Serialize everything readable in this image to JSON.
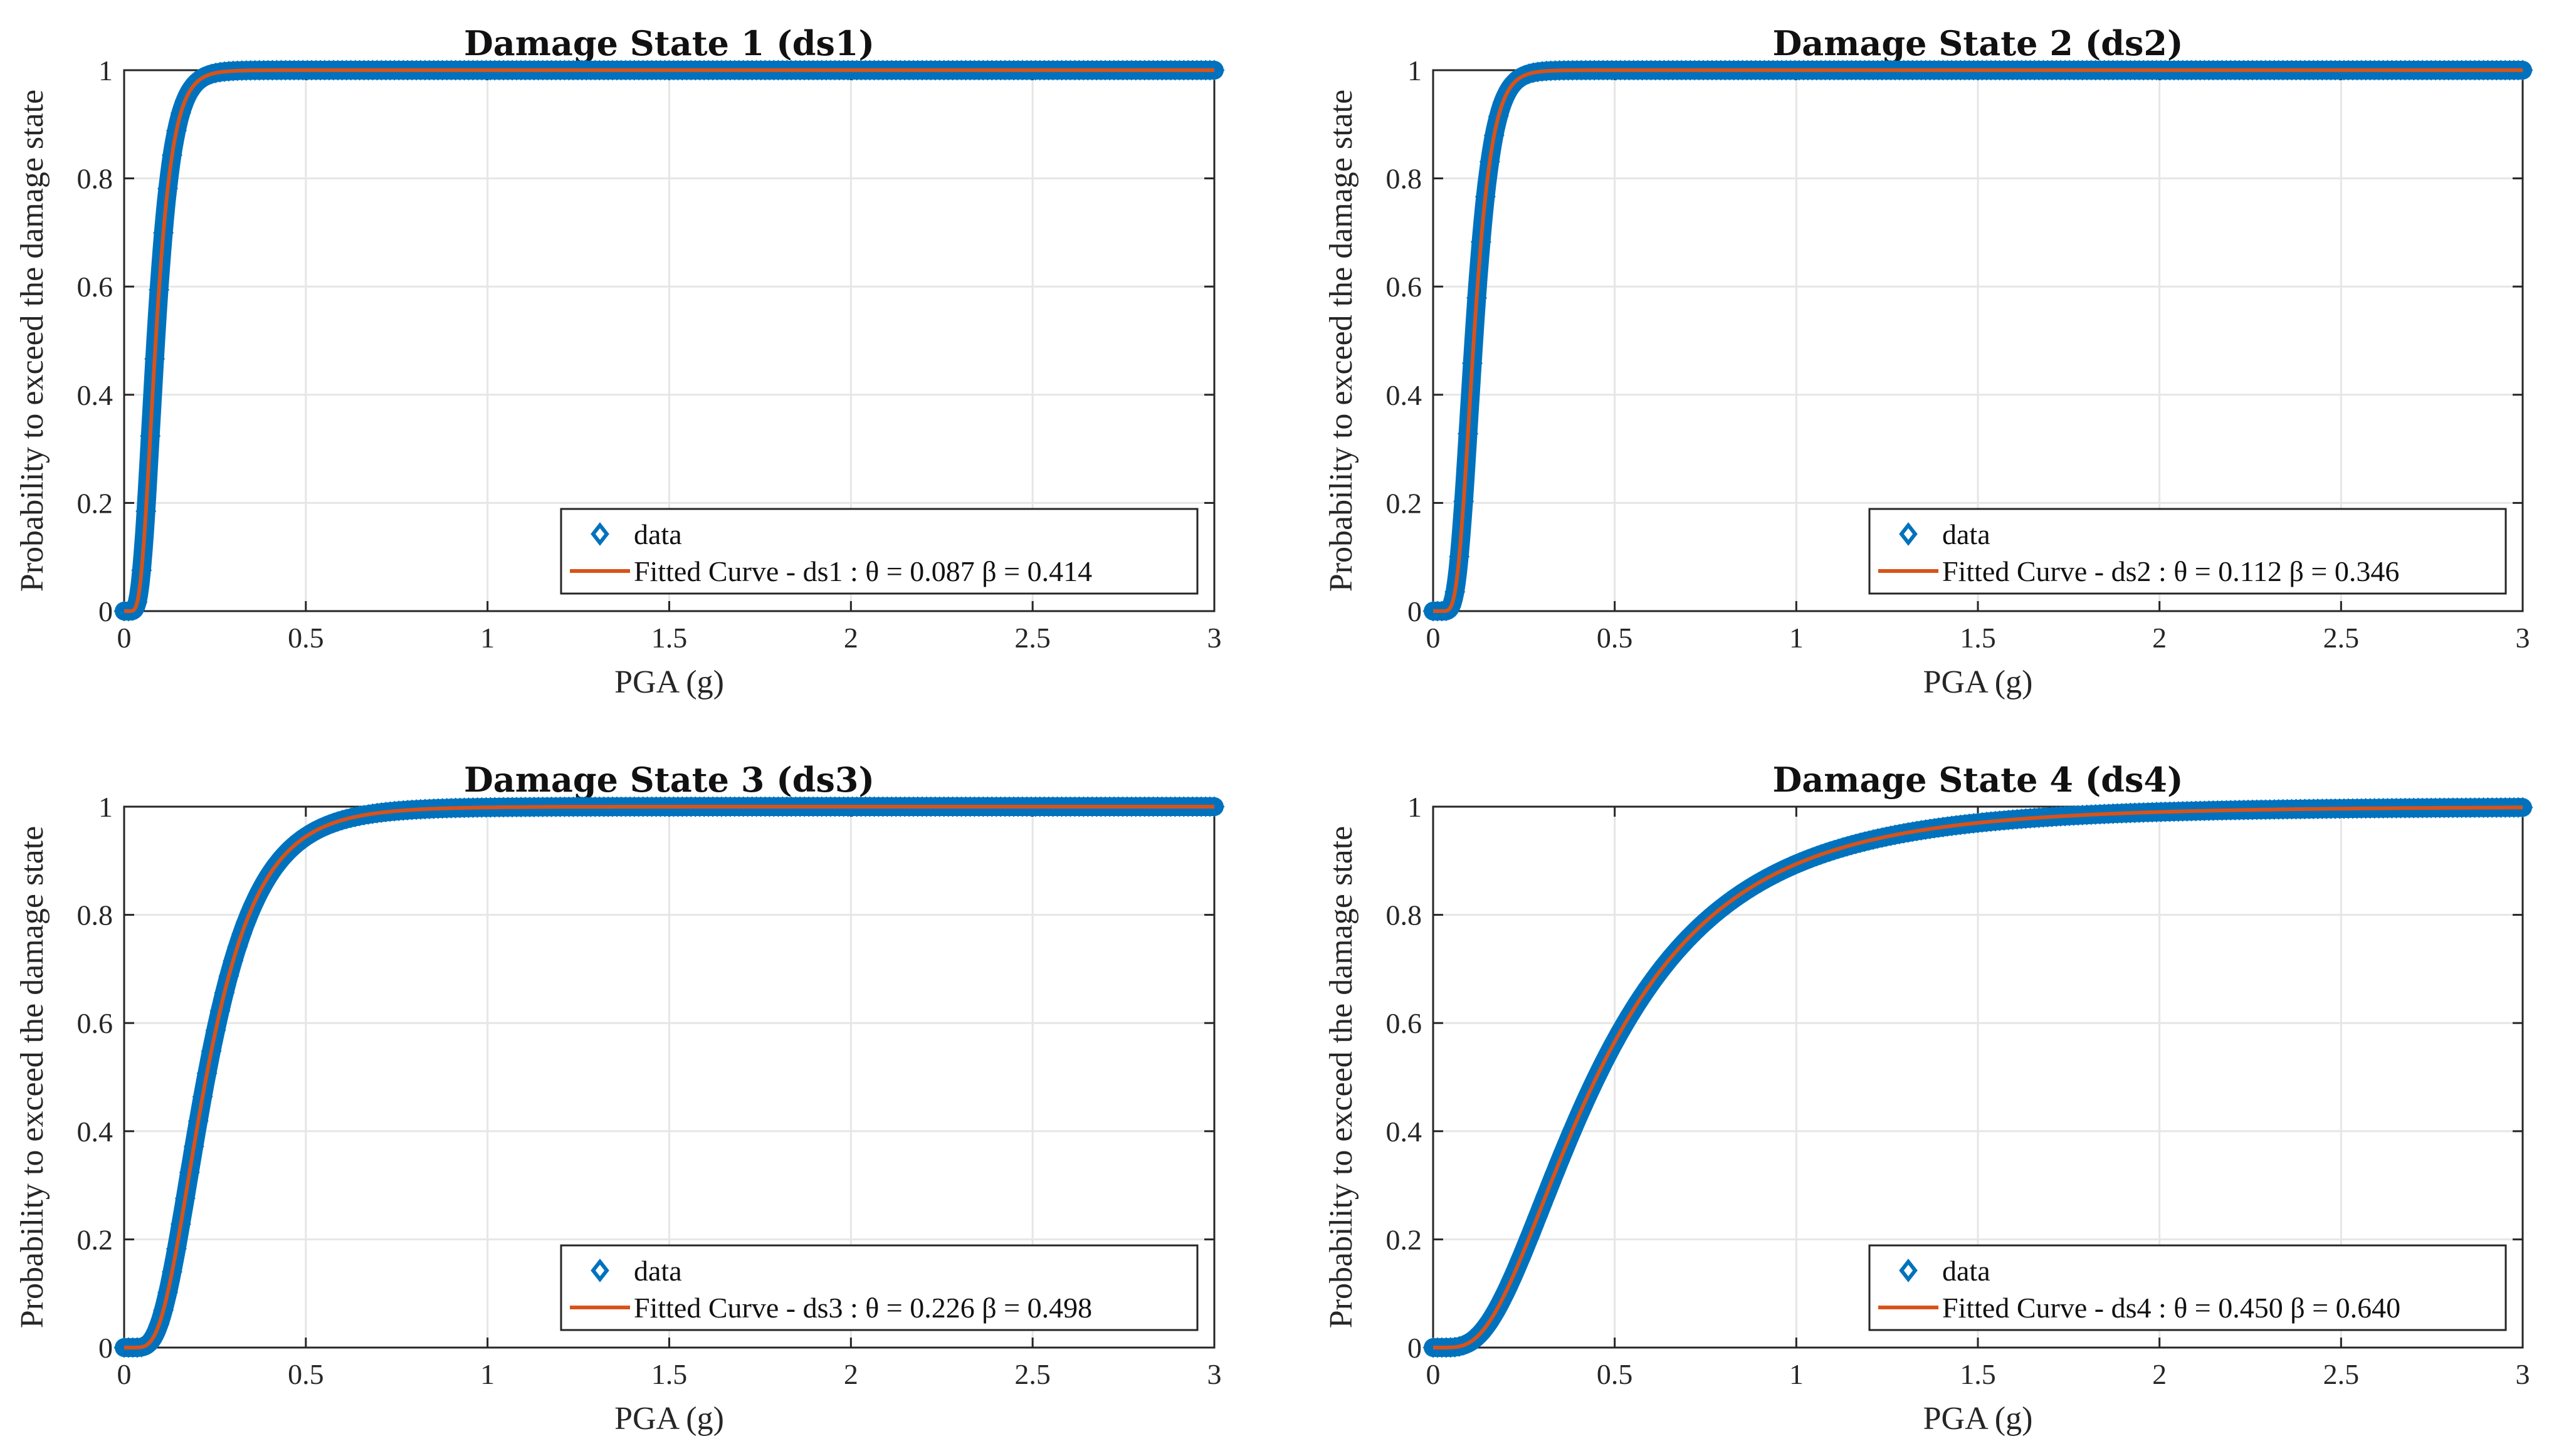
{
  "colors": {
    "data": "#0072BD",
    "fit": "#D95319",
    "grid": "#e6e6e6",
    "axis": "#262626"
  },
  "chart_data": [
    {
      "type": "line",
      "title": "Damage State 1  (ds1)",
      "xlabel": "PGA (g)",
      "ylabel": "Probability to exceed the damage state",
      "xlim": [
        0,
        3
      ],
      "ylim": [
        0,
        1
      ],
      "xticks": [
        0,
        0.5,
        1,
        1.5,
        2,
        2.5,
        3
      ],
      "xtick_labels": [
        "0",
        "0.5",
        "1",
        "1.5",
        "2",
        "2.5",
        "3"
      ],
      "yticks": [
        0,
        0.2,
        0.4,
        0.6,
        0.8,
        1
      ],
      "ytick_labels": [
        "0",
        "0.2",
        "0.4",
        "0.6",
        "0.8",
        "1"
      ],
      "grid": true,
      "series": [
        {
          "name": "data",
          "kind": "markers",
          "marker": "diamond"
        },
        {
          "name": "Fitted Curve - ds1",
          "kind": "line",
          "distribution": "lognormal_cdf",
          "theta": 0.087,
          "beta": 0.414
        }
      ],
      "legend": {
        "position": "bottom-right",
        "entries": [
          "data",
          "Fitted Curve - ds1 :  θ = 0.087    β = 0.414"
        ]
      }
    },
    {
      "type": "line",
      "title": "Damage State 2  (ds2)",
      "xlabel": "PGA (g)",
      "ylabel": "Probability to exceed the damage state",
      "xlim": [
        0,
        3
      ],
      "ylim": [
        0,
        1
      ],
      "xticks": [
        0,
        0.5,
        1,
        1.5,
        2,
        2.5,
        3
      ],
      "xtick_labels": [
        "0",
        "0.5",
        "1",
        "1.5",
        "2",
        "2.5",
        "3"
      ],
      "yticks": [
        0,
        0.2,
        0.4,
        0.6,
        0.8,
        1
      ],
      "ytick_labels": [
        "0",
        "0.2",
        "0.4",
        "0.6",
        "0.8",
        "1"
      ],
      "grid": true,
      "series": [
        {
          "name": "data",
          "kind": "markers",
          "marker": "diamond"
        },
        {
          "name": "Fitted Curve - ds2",
          "kind": "line",
          "distribution": "lognormal_cdf",
          "theta": 0.112,
          "beta": 0.346
        }
      ],
      "legend": {
        "position": "bottom-right",
        "entries": [
          "data",
          "Fitted Curve - ds2 :  θ = 0.112    β = 0.346"
        ]
      }
    },
    {
      "type": "line",
      "title": "Damage State 3  (ds3)",
      "xlabel": "PGA (g)",
      "ylabel": "Probability to exceed the damage state",
      "xlim": [
        0,
        3
      ],
      "ylim": [
        0,
        1
      ],
      "xticks": [
        0,
        0.5,
        1,
        1.5,
        2,
        2.5,
        3
      ],
      "xtick_labels": [
        "0",
        "0.5",
        "1",
        "1.5",
        "2",
        "2.5",
        "3"
      ],
      "yticks": [
        0,
        0.2,
        0.4,
        0.6,
        0.8,
        1
      ],
      "ytick_labels": [
        "0",
        "0.2",
        "0.4",
        "0.6",
        "0.8",
        "1"
      ],
      "grid": true,
      "series": [
        {
          "name": "data",
          "kind": "markers",
          "marker": "diamond"
        },
        {
          "name": "Fitted Curve - ds3",
          "kind": "line",
          "distribution": "lognormal_cdf",
          "theta": 0.226,
          "beta": 0.498
        }
      ],
      "legend": {
        "position": "bottom-right",
        "entries": [
          "data",
          "Fitted Curve - ds3 :  θ = 0.226    β = 0.498"
        ]
      }
    },
    {
      "type": "line",
      "title": "Damage State 4  (ds4)",
      "xlabel": "PGA (g)",
      "ylabel": "Probability to exceed the damage state",
      "xlim": [
        0,
        3
      ],
      "ylim": [
        0,
        1
      ],
      "xticks": [
        0,
        0.5,
        1,
        1.5,
        2,
        2.5,
        3
      ],
      "xtick_labels": [
        "0",
        "0.5",
        "1",
        "1.5",
        "2",
        "2.5",
        "3"
      ],
      "yticks": [
        0,
        0.2,
        0.4,
        0.6,
        0.8,
        1
      ],
      "ytick_labels": [
        "0",
        "0.2",
        "0.4",
        "0.6",
        "0.8",
        "1"
      ],
      "grid": true,
      "series": [
        {
          "name": "data",
          "kind": "markers",
          "marker": "diamond"
        },
        {
          "name": "Fitted Curve - ds4",
          "kind": "line",
          "distribution": "lognormal_cdf",
          "theta": 0.45,
          "beta": 0.64
        }
      ],
      "legend": {
        "position": "bottom-right",
        "entries": [
          "data",
          "Fitted Curve - ds4 :  θ = 0.450    β = 0.640"
        ]
      }
    }
  ]
}
